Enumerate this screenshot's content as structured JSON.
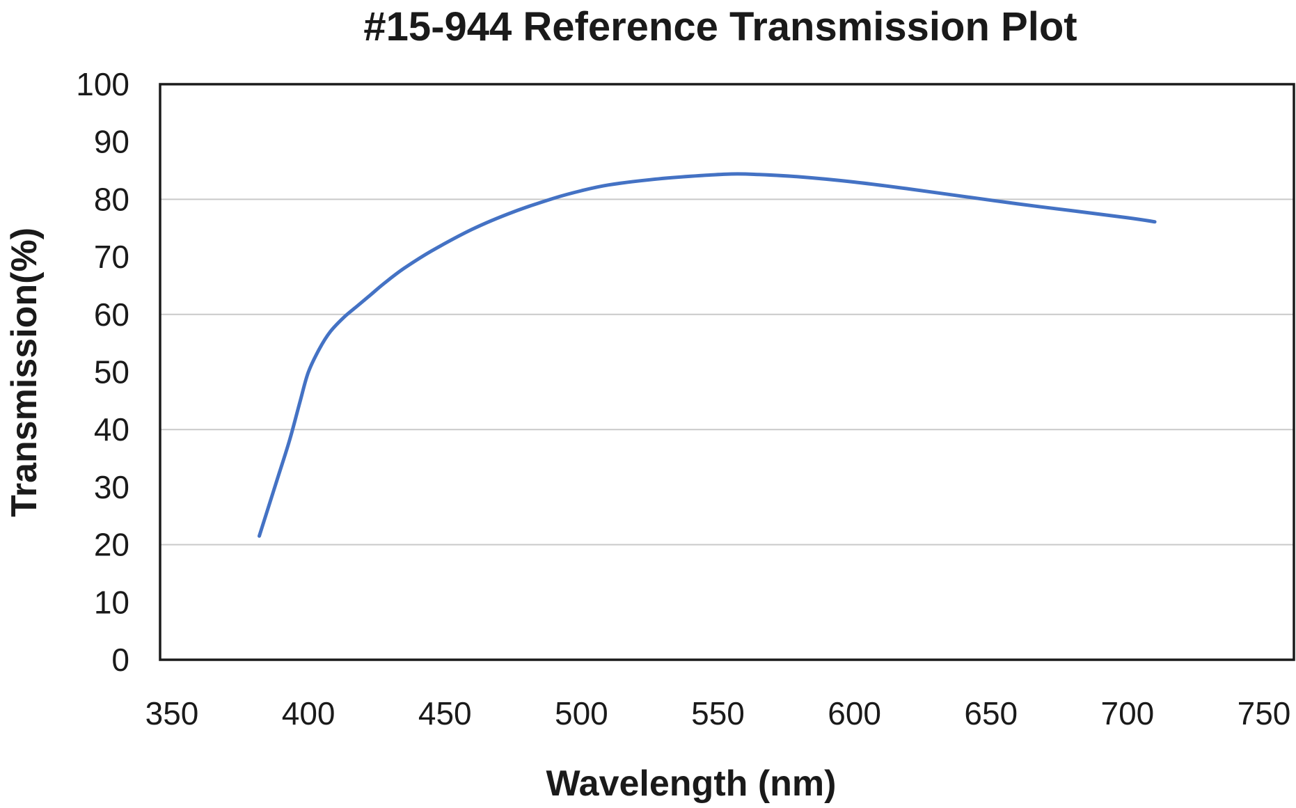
{
  "chart_data": {
    "type": "line",
    "title": "#15-944 Reference Transmission Plot",
    "xlabel": "Wavelength (nm)",
    "ylabel": "Transmission(%)",
    "xlim": [
      350,
      750
    ],
    "ylim": [
      0,
      100
    ],
    "xticks": [
      350,
      400,
      450,
      500,
      550,
      600,
      650,
      700,
      750
    ],
    "yticks": [
      0,
      10,
      20,
      30,
      40,
      50,
      60,
      70,
      80,
      90,
      100
    ],
    "grid": "horizontal at 20, 40, 60, 80",
    "gridlines": [
      20,
      40,
      60,
      80
    ],
    "series_color": "#4472c4",
    "series": [
      {
        "x": [
          382,
          388,
          393,
          397,
          400,
          404,
          408,
          413,
          418,
          423,
          428,
          435,
          445,
          460,
          475,
          490,
          500,
          510,
          525,
          540,
          555,
          565,
          580,
          600,
          620,
          640,
          660,
          680,
          700,
          710
        ],
        "y": [
          21.5,
          30.5,
          38,
          45,
          50,
          54,
          57,
          59.5,
          61.5,
          63.5,
          65.5,
          68,
          71,
          74.8,
          77.8,
          80.2,
          81.5,
          82.5,
          83.4,
          84,
          84.4,
          84.3,
          83.9,
          83,
          81.8,
          80.5,
          79.2,
          78,
          76.8,
          76.1
        ]
      }
    ]
  }
}
